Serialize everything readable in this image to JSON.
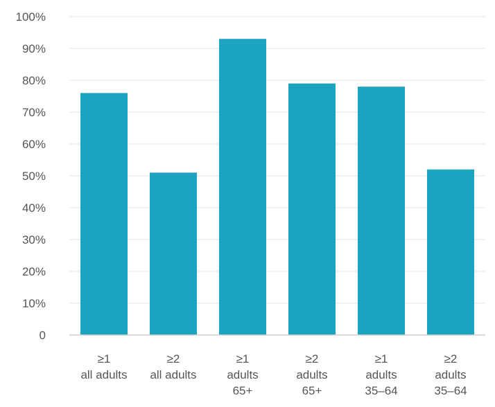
{
  "chart_data": {
    "type": "bar",
    "title": "",
    "xlabel": "",
    "ylabel": "",
    "ylim": [
      0,
      100
    ],
    "y_ticks": [
      "0",
      "10%",
      "20%",
      "30%",
      "40%",
      "50%",
      "60%",
      "70%",
      "80%",
      "90%",
      "100%"
    ],
    "grid": true,
    "legend": "none",
    "bar_color": "#1ba3bf",
    "categories": [
      [
        "≥1",
        "all adults"
      ],
      [
        "≥2",
        "all adults"
      ],
      [
        "≥1",
        "adults",
        "65+"
      ],
      [
        "≥2",
        "adults",
        "65+"
      ],
      [
        "≥1",
        "adults",
        "35–64"
      ],
      [
        "≥2",
        "adults",
        "35–64"
      ]
    ],
    "values": [
      76,
      51,
      93,
      79,
      78,
      52
    ]
  }
}
